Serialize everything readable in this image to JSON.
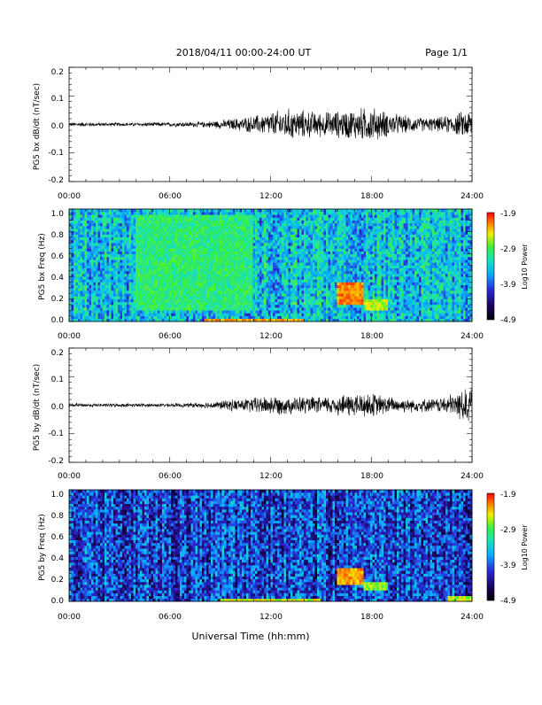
{
  "header": {
    "title": "2018/04/11   00:00-24:00 UT",
    "page": "Page 1/1"
  },
  "footer": {
    "xlabel": "Universal Time (hh:mm)"
  },
  "colors": {
    "trace": "#000000",
    "spectrogram_scale": [
      "#000000",
      "#1a005a",
      "#2a2ad6",
      "#0aa8ff",
      "#18e0c0",
      "#3cf03c",
      "#f0f000",
      "#ff8000",
      "#ff0000"
    ]
  },
  "chart_data": [
    {
      "type": "line",
      "ylabel": "PG5 bx dB/dt (nT/sec)",
      "xlim": [
        0,
        24
      ],
      "ylim": [
        -0.2,
        0.2
      ],
      "yticks": [
        "0.2",
        "0.1",
        "0.0",
        "-0.1",
        "-0.2"
      ],
      "xticks": [
        "00:00",
        "06:00",
        "12:00",
        "18:00",
        "24:00"
      ],
      "series": [
        {
          "x": [
            0,
            1,
            2,
            3,
            4,
            5,
            6,
            7,
            8,
            9,
            10,
            11,
            12,
            13,
            14,
            15,
            16,
            17,
            18,
            19,
            20,
            21,
            22,
            23,
            24
          ],
          "amplitude": [
            0.006,
            0.006,
            0.005,
            0.005,
            0.005,
            0.006,
            0.006,
            0.007,
            0.008,
            0.012,
            0.018,
            0.025,
            0.035,
            0.045,
            0.04,
            0.035,
            0.038,
            0.045,
            0.05,
            0.035,
            0.025,
            0.02,
            0.02,
            0.03,
            0.045
          ]
        }
      ]
    },
    {
      "type": "heatmap",
      "ylabel": "PG5 bx Freq (Hz)",
      "xlim": [
        0,
        24
      ],
      "ylim": [
        0,
        1.0
      ],
      "yticks": [
        "1.0",
        "0.8",
        "0.6",
        "0.4",
        "0.2",
        "0.0"
      ],
      "xticks": [
        "00:00",
        "06:00",
        "12:00",
        "18:00",
        "24:00"
      ],
      "colorbar": {
        "label": "Log10 Power",
        "range": [
          -4.9,
          -1.9
        ],
        "ticks": [
          "-1.9",
          "-2.9",
          "-3.9",
          "-4.9"
        ]
      },
      "background_log_power": -3.6,
      "bands": [
        {
          "t0": 4,
          "t1": 11,
          "f0": 0.1,
          "f1": 0.95,
          "log_power": -3.2
        },
        {
          "t0": 8,
          "t1": 14,
          "f0": 0.0,
          "f1": 0.03,
          "log_power": -2.4
        },
        {
          "t0": 16,
          "t1": 17.5,
          "f0": 0.15,
          "f1": 0.35,
          "log_power": -2.3
        },
        {
          "t0": 17.5,
          "t1": 19,
          "f0": 0.1,
          "f1": 0.2,
          "log_power": -2.8
        }
      ]
    },
    {
      "type": "line",
      "ylabel": "PG5 by dB/dt (nT/sec)",
      "xlim": [
        0,
        24
      ],
      "ylim": [
        -0.2,
        0.2
      ],
      "yticks": [
        "0.2",
        "0.1",
        "0.0",
        "-0.1",
        "-0.2"
      ],
      "xticks": [
        "00:00",
        "06:00",
        "12:00",
        "18:00",
        "24:00"
      ],
      "series": [
        {
          "x": [
            0,
            1,
            2,
            3,
            4,
            5,
            6,
            7,
            8,
            9,
            10,
            11,
            12,
            13,
            14,
            15,
            16,
            17,
            18,
            19,
            20,
            21,
            22,
            23,
            24
          ],
          "amplitude": [
            0.006,
            0.005,
            0.005,
            0.005,
            0.005,
            0.005,
            0.005,
            0.006,
            0.008,
            0.012,
            0.018,
            0.022,
            0.028,
            0.025,
            0.025,
            0.022,
            0.03,
            0.035,
            0.035,
            0.025,
            0.02,
            0.018,
            0.02,
            0.035,
            0.06
          ]
        }
      ]
    },
    {
      "type": "heatmap",
      "ylabel": "PG5 by Freq (Hz)",
      "xlim": [
        0,
        24
      ],
      "ylim": [
        0,
        1.0
      ],
      "yticks": [
        "1.0",
        "0.8",
        "0.6",
        "0.4",
        "0.2",
        "0.0"
      ],
      "xticks": [
        "00:00",
        "06:00",
        "12:00",
        "18:00",
        "24:00"
      ],
      "colorbar": {
        "label": "Log10 Power",
        "range": [
          -4.9,
          -1.9
        ],
        "ticks": [
          "-1.9",
          "-2.9",
          "-3.9",
          "-4.9"
        ]
      },
      "background_log_power": -4.1,
      "bands": [
        {
          "t0": 9,
          "t1": 15,
          "f0": 0.0,
          "f1": 0.03,
          "log_power": -2.7
        },
        {
          "t0": 16,
          "t1": 17.5,
          "f0": 0.15,
          "f1": 0.3,
          "log_power": -2.4
        },
        {
          "t0": 17.5,
          "t1": 19,
          "f0": 0.1,
          "f1": 0.18,
          "log_power": -2.9
        },
        {
          "t0": 22.5,
          "t1": 24,
          "f0": 0.0,
          "f1": 0.06,
          "log_power": -2.8
        }
      ]
    }
  ]
}
